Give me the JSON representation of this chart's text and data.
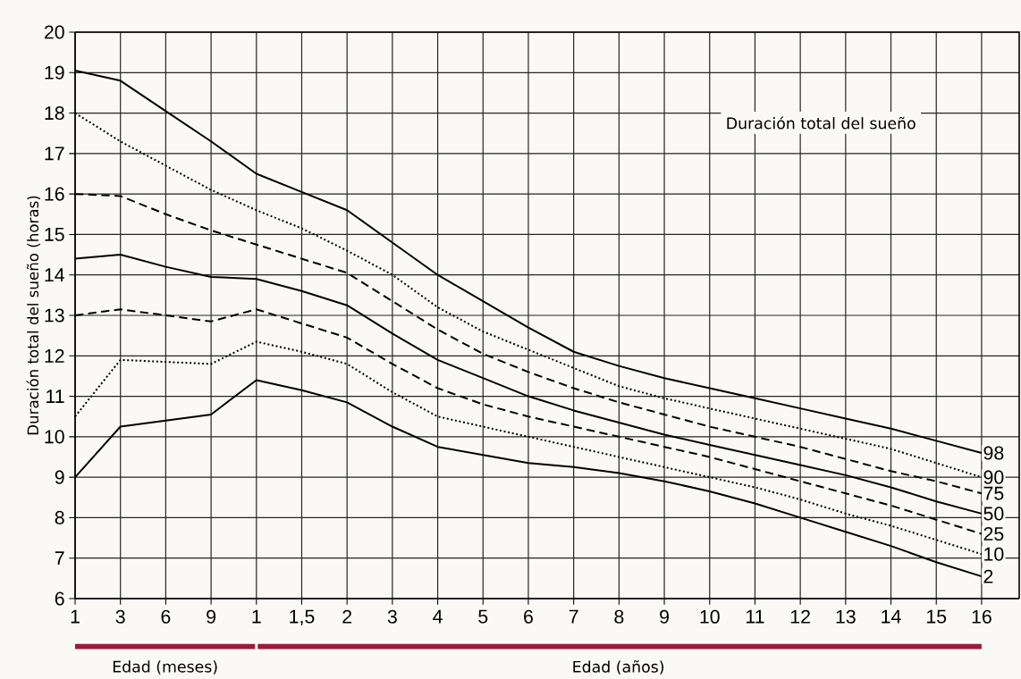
{
  "chart_data": {
    "type": "line",
    "title": "Duración total del sueño",
    "xlabel": "Edad (años)",
    "ylabel": "Duración total del sueño (horas)",
    "annotations": [
      "Edad (meses)"
    ],
    "categories": [
      "1",
      "3",
      "6",
      "9",
      "1",
      "1,5",
      "2",
      "3",
      "4",
      "5",
      "6",
      "7",
      "8",
      "9",
      "10",
      "11",
      "12",
      "13",
      "14",
      "15",
      "16"
    ],
    "series": [
      {
        "name": "98",
        "color": "#000000",
        "line_style": "solid",
        "values": [
          19.05,
          18.8,
          18.05,
          17.3,
          16.5,
          16.05,
          15.6,
          14.8,
          14.0,
          13.35,
          12.7,
          12.1,
          11.75,
          11.45,
          11.2,
          10.95,
          10.7,
          10.45,
          10.2,
          9.9,
          9.6
        ]
      },
      {
        "name": "90",
        "color": "#000000",
        "line_style": "dotted",
        "values": [
          18.0,
          17.3,
          16.7,
          16.1,
          15.6,
          15.15,
          14.6,
          14.0,
          13.2,
          12.6,
          12.15,
          11.7,
          11.25,
          10.95,
          10.7,
          10.45,
          10.2,
          9.95,
          9.7,
          9.35,
          9.0
        ]
      },
      {
        "name": "75",
        "color": "#000000",
        "line_style": "dashed",
        "values": [
          16.0,
          15.95,
          15.5,
          15.1,
          14.75,
          14.4,
          14.05,
          13.35,
          12.65,
          12.05,
          11.6,
          11.2,
          10.85,
          10.55,
          10.25,
          10.0,
          9.75,
          9.45,
          9.15,
          8.9,
          8.6
        ]
      },
      {
        "name": "50",
        "color": "#000000",
        "line_style": "solid",
        "values": [
          14.4,
          14.5,
          14.2,
          13.95,
          13.9,
          13.6,
          13.25,
          12.55,
          11.9,
          11.45,
          11.0,
          10.65,
          10.35,
          10.05,
          9.8,
          9.55,
          9.3,
          9.05,
          8.75,
          8.4,
          8.1
        ]
      },
      {
        "name": "25",
        "color": "#000000",
        "line_style": "dashed",
        "values": [
          13.0,
          13.15,
          13.0,
          12.85,
          13.15,
          12.8,
          12.45,
          11.8,
          11.2,
          10.8,
          10.5,
          10.25,
          10.0,
          9.75,
          9.5,
          9.2,
          8.9,
          8.6,
          8.3,
          7.95,
          7.6
        ]
      },
      {
        "name": "10",
        "color": "#000000",
        "line_style": "dotted",
        "values": [
          10.5,
          11.9,
          11.85,
          11.8,
          12.35,
          12.1,
          11.8,
          11.1,
          10.5,
          10.25,
          10.0,
          9.75,
          9.5,
          9.25,
          9.0,
          8.75,
          8.45,
          8.1,
          7.8,
          7.45,
          7.1
        ]
      },
      {
        "name": "2",
        "color": "#000000",
        "line_style": "solid",
        "values": [
          9.0,
          10.25,
          10.4,
          10.55,
          11.4,
          11.15,
          10.85,
          10.25,
          9.75,
          9.55,
          9.35,
          9.25,
          9.1,
          8.9,
          8.65,
          8.35,
          8.0,
          7.65,
          7.3,
          6.9,
          6.55
        ]
      }
    ],
    "ylim": [
      6,
      20
    ],
    "yticks": [
      6,
      7,
      8,
      9,
      10,
      11,
      12,
      13,
      14,
      15,
      16,
      17,
      18,
      19,
      20
    ],
    "grid": true,
    "marker": "none"
  }
}
